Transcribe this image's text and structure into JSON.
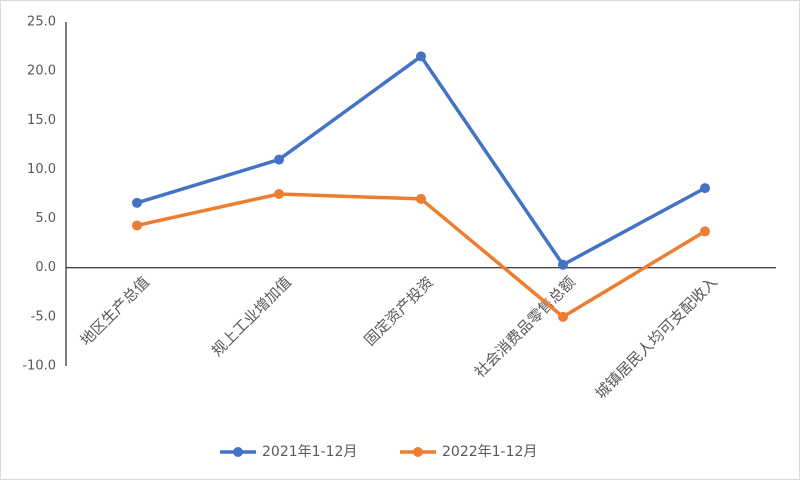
{
  "chart_data": {
    "type": "line",
    "categories": [
      "地区生产总值",
      "规上工业增加值",
      "固定资产投资",
      "社会消费品零售总额",
      "城镇居民人均可支配收入"
    ],
    "series": [
      {
        "name": "2021年1-12月",
        "color": "#4472c4",
        "values": [
          6.6,
          11.0,
          21.5,
          0.3,
          8.1
        ]
      },
      {
        "name": "2022年1-12月",
        "color": "#ed7d31",
        "values": [
          4.3,
          7.5,
          7.0,
          -5.0,
          3.7
        ]
      }
    ],
    "ylim": [
      -10,
      25
    ],
    "yticks": [
      {
        "value": -10,
        "label": "-10.0"
      },
      {
        "value": -5,
        "label": "-5.0"
      },
      {
        "value": 0,
        "label": "0.0"
      },
      {
        "value": 5,
        "label": "5.0"
      },
      {
        "value": 10,
        "label": "10.0"
      },
      {
        "value": 15,
        "label": "15.0"
      },
      {
        "value": 20,
        "label": "20.0"
      },
      {
        "value": 25,
        "label": "25.0"
      }
    ],
    "grid": false,
    "legend": "bottom"
  }
}
